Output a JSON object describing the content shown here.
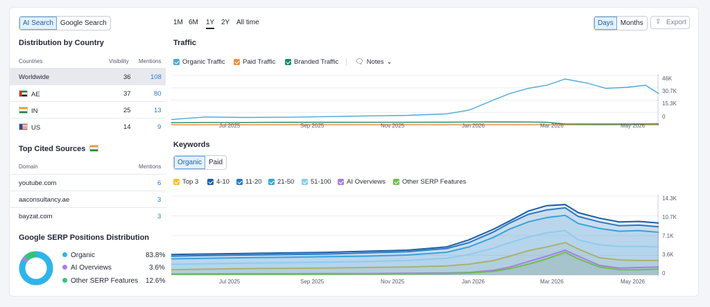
{
  "toggle": {
    "ai": "AI Search",
    "google": "Google Search"
  },
  "distribution": {
    "title": "Distribution by Country",
    "headers": [
      "Countries",
      "Visibility",
      "Mentions"
    ],
    "rows": [
      {
        "name": "Worldwide",
        "visibility": "36",
        "mentions": "108"
      },
      {
        "name": "AE",
        "visibility": "37",
        "mentions": "80"
      },
      {
        "name": "IN",
        "visibility": "25",
        "mentions": "13"
      },
      {
        "name": "US",
        "visibility": "14",
        "mentions": "9"
      }
    ]
  },
  "cited": {
    "title": "Top Cited Sources",
    "headers": [
      "Domain",
      "Mentions"
    ],
    "rows": [
      {
        "domain": "youtube.com",
        "mentions": "6"
      },
      {
        "domain": "aaconsultancy.ae",
        "mentions": "3"
      },
      {
        "domain": "bayzat.com",
        "mentions": "3"
      }
    ]
  },
  "serp_dist": {
    "title": "Google SERP Positions Distribution",
    "items": [
      {
        "label": "Organic",
        "pct": "83.8%",
        "color": "#2fb4ea"
      },
      {
        "label": "AI Overviews",
        "pct": "3.6%",
        "color": "#a77ee6"
      },
      {
        "label": "Other SERP Features",
        "pct": "12.6%",
        "color": "#33c27a"
      }
    ]
  },
  "period": [
    "1M",
    "6M",
    "1Y",
    "2Y",
    "All time"
  ],
  "granularity": {
    "days": "Days",
    "months": "Months"
  },
  "export_label": "Export",
  "traffic": {
    "title": "Traffic",
    "legend": [
      "Organic Traffic",
      "Paid Traffic",
      "Branded Traffic"
    ],
    "notes_label": "Notes"
  },
  "traffic_ticks": {
    "y": [
      "46K",
      "30.7K",
      "15.3K",
      "0"
    ]
  },
  "keywords_ticks": {
    "y": [
      "14.3K",
      "10.7K",
      "7.1K",
      "3.6K",
      "0"
    ]
  },
  "x_ticks": [
    "Jul 2025",
    "Sep 2025",
    "Nov 2025",
    "Jan 2026",
    "Mar 2026",
    "May 2026"
  ],
  "keywords": {
    "title": "Keywords",
    "tabs": [
      "Organic",
      "Paid"
    ],
    "legend": [
      "Top 3",
      "4-10",
      "11-20",
      "21-50",
      "51-100",
      "AI Overviews",
      "Other SERP Features"
    ]
  },
  "chart_data": [
    {
      "type": "line",
      "title": "Traffic",
      "x": [
        "2025-05-20",
        "2025-06-15",
        "2025-07-15",
        "2025-08-15",
        "2025-09-15",
        "2025-10-15",
        "2025-11-15",
        "2025-12-15",
        "2026-01-01",
        "2026-01-20",
        "2026-02-01",
        "2026-02-15",
        "2026-03-01",
        "2026-03-15",
        "2026-04-01",
        "2026-04-15",
        "2026-05-01",
        "2026-05-15",
        "2026-05-25"
      ],
      "ylim": [
        0,
        46000
      ],
      "series": [
        {
          "name": "Organic Traffic",
          "color": "#4ba7dc",
          "values": [
            5000,
            7500,
            7000,
            7200,
            7800,
            8500,
            9000,
            10500,
            14000,
            24000,
            30000,
            35000,
            38000,
            44000,
            40000,
            35000,
            36000,
            38000,
            30000
          ]
        },
        {
          "name": "Paid Traffic",
          "color": "#f08f3d",
          "values": [
            0,
            0,
            0,
            0,
            0,
            0,
            0,
            0,
            0,
            0,
            0,
            0,
            0,
            0,
            0,
            0,
            0,
            0,
            0
          ]
        },
        {
          "name": "Branded Traffic",
          "color": "#1b8c67",
          "values": [
            2000,
            2200,
            2200,
            2300,
            2300,
            2400,
            2400,
            2500,
            2600,
            2700,
            2700,
            2600,
            2400,
            800,
            700,
            700,
            700,
            800,
            900
          ]
        }
      ]
    },
    {
      "type": "area",
      "title": "Keywords",
      "x": [
        "2025-05-20",
        "2025-06-15",
        "2025-07-15",
        "2025-08-15",
        "2025-09-15",
        "2025-10-15",
        "2025-11-15",
        "2025-12-15",
        "2026-01-01",
        "2026-01-20",
        "2026-02-01",
        "2026-02-15",
        "2026-03-01",
        "2026-03-15",
        "2026-03-25",
        "2026-04-10",
        "2026-04-25",
        "2026-05-10",
        "2026-05-25"
      ],
      "ylim": [
        0,
        14300
      ],
      "series": [
        {
          "name": "Top 3",
          "color": "#f2c12e",
          "values": [
            1000,
            1100,
            1200,
            1250,
            1300,
            1400,
            1500,
            1700,
            2000,
            2700,
            3500,
            4500,
            5200,
            6000,
            4800,
            3200,
            2800,
            2700,
            2700
          ]
        },
        {
          "name": "4-10",
          "color": "#1a5ea8",
          "values": [
            3800,
            3900,
            4000,
            4100,
            4200,
            4400,
            4600,
            5200,
            6500,
            8500,
            10000,
            11800,
            12800,
            13000,
            11500,
            10500,
            9800,
            9900,
            9600
          ]
        },
        {
          "name": "11-20",
          "color": "#2a7ac4",
          "values": [
            3500,
            3600,
            3700,
            3800,
            3900,
            4100,
            4300,
            4900,
            6000,
            8000,
            9600,
            11200,
            12000,
            12400,
            10800,
            9800,
            9100,
            9200,
            8900
          ]
        },
        {
          "name": "21-50",
          "color": "#36a4dc",
          "values": [
            3000,
            3100,
            3200,
            3300,
            3400,
            3500,
            3700,
            4200,
            5200,
            7000,
            8500,
            9800,
            10600,
            11000,
            9500,
            8600,
            8100,
            8200,
            7900
          ]
        },
        {
          "name": "51-100",
          "color": "#8fcbef",
          "values": [
            2000,
            2100,
            2200,
            2300,
            2400,
            2500,
            2700,
            3100,
            3800,
            5000,
            6000,
            7000,
            7800,
            8200,
            6500,
            5600,
            5300,
            5300,
            5200
          ]
        },
        {
          "name": "AI Overviews",
          "color": "#a77ee6",
          "values": [
            200,
            220,
            250,
            260,
            280,
            300,
            350,
            400,
            500,
            900,
            1500,
            2500,
            3500,
            4600,
            3500,
            1800,
            1300,
            1400,
            1500
          ]
        },
        {
          "name": "Other SERP Features",
          "color": "#6cc04a",
          "values": [
            150,
            160,
            180,
            190,
            200,
            230,
            260,
            300,
            400,
            700,
            1200,
            2000,
            3000,
            4200,
            3000,
            1500,
            1000,
            1000,
            1100
          ]
        }
      ]
    }
  ]
}
